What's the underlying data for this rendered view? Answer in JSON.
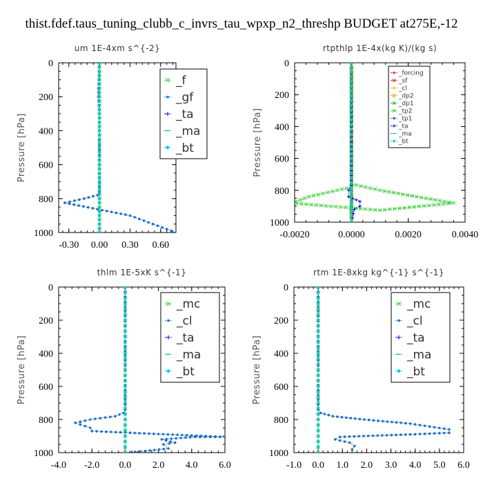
{
  "figure_title": "thist.fdef.taus_tuning_clubb_c_invrs_tau_wpxp_n2_threshp  BUDGET at275E,-12",
  "chart_data": [
    {
      "type": "line",
      "title": "um   1E-4xm  s^{-2}",
      "ylabel": "Pressure [hPa]",
      "xlim": [
        -0.4,
        0.75
      ],
      "ylim": [
        1000,
        0
      ],
      "xticks": [
        -0.3,
        0.0,
        0.3,
        0.6
      ],
      "xtick_labels": [
        "-0.30",
        "0.00",
        "0.30",
        "0.60"
      ],
      "yticks": [
        0,
        200,
        400,
        600,
        800,
        1000
      ],
      "legend_style": "big",
      "series": [
        {
          "name": "_f",
          "color": "#33cc33",
          "marker": "x",
          "x": [
            0,
            0,
            0,
            0,
            0,
            0,
            0,
            0,
            0,
            0,
            0,
            0,
            0
          ],
          "y": [
            0,
            100,
            200,
            300,
            400,
            500,
            600,
            700,
            800,
            850,
            900,
            950,
            1000
          ]
        },
        {
          "name": "_gf",
          "color": "#1f6fbf",
          "marker": "dot",
          "x": [
            -0.003,
            -0.005,
            -0.01,
            -0.01,
            0,
            0,
            0,
            0,
            -0.02,
            -0.15,
            -0.34,
            0.3,
            0.75
          ],
          "y": [
            0,
            100,
            150,
            200,
            300,
            400,
            600,
            760,
            780,
            800,
            825,
            900,
            1000
          ]
        },
        {
          "name": "_ta",
          "color": "#0000dd",
          "marker": "plus",
          "x": [
            0,
            0,
            0,
            0,
            0,
            0,
            0,
            0,
            0,
            0,
            0,
            0
          ],
          "y": [
            0,
            100,
            200,
            300,
            400,
            500,
            600,
            700,
            800,
            850,
            900,
            1000
          ]
        },
        {
          "name": "_ma",
          "color": "#00aacc",
          "marker": "dash",
          "x": [
            0,
            0,
            0,
            0,
            0,
            0,
            0,
            0,
            0,
            0,
            0
          ],
          "y": [
            0,
            100,
            200,
            300,
            400,
            500,
            600,
            700,
            800,
            900,
            1000
          ]
        },
        {
          "name": "_bt",
          "color": "#00cccc",
          "marker": "diamond",
          "x": [
            0,
            0,
            0,
            0,
            0,
            0,
            0,
            0,
            0,
            0,
            0
          ],
          "y": [
            0,
            100,
            200,
            300,
            400,
            500,
            600,
            700,
            800,
            900,
            1000
          ]
        }
      ]
    },
    {
      "type": "line",
      "title": "rtpthlp   1E-4x(kg K)/(kg s)",
      "ylabel": "Pressure [hPa]",
      "xlim": [
        -0.002,
        0.004
      ],
      "ylim": [
        1000,
        0
      ],
      "xticks": [
        -0.002,
        0.0,
        0.002,
        0.004
      ],
      "xtick_labels": [
        "-0.0020",
        "0.0000",
        "0.0020",
        "0.0040"
      ],
      "yticks": [
        0,
        200,
        400,
        600,
        800,
        1000
      ],
      "legend_style": "small",
      "series": [
        {
          "name": "_forcing",
          "color": "#cc0000",
          "marker": "plus",
          "x": [
            0,
            0,
            0,
            0,
            0,
            0,
            0,
            0,
            0,
            0,
            0
          ],
          "y": [
            0,
            100,
            200,
            300,
            400,
            500,
            600,
            700,
            800,
            900,
            1000
          ]
        },
        {
          "name": "_sf",
          "color": "#dd2200",
          "marker": "x",
          "x": [
            0,
            0,
            0,
            0,
            0,
            0,
            0,
            0,
            0,
            0,
            0
          ],
          "y": [
            0,
            100,
            200,
            300,
            400,
            500,
            600,
            700,
            800,
            900,
            1000
          ]
        },
        {
          "name": "_cl",
          "color": "#ddaa00",
          "marker": "plus",
          "x": [
            0,
            0,
            0,
            0,
            0,
            0,
            0,
            0
          ],
          "y": [
            0,
            200,
            400,
            600,
            800,
            900,
            950,
            1000
          ]
        },
        {
          "name": "_dp2",
          "color": "#ccaa00",
          "marker": "square",
          "x": [
            0,
            0,
            0,
            0,
            0,
            0
          ],
          "y": [
            0,
            200,
            400,
            600,
            800,
            1000
          ]
        },
        {
          "name": "_dp1",
          "color": "#33aa33",
          "marker": "x",
          "x": [
            0,
            0,
            0,
            0,
            0,
            0
          ],
          "y": [
            0,
            200,
            400,
            600,
            800,
            1000
          ]
        },
        {
          "name": "_tp2",
          "color": "#33cc33",
          "marker": "x",
          "x": [
            0,
            0,
            0.001,
            0.0036,
            0.001,
            -0.0021,
            -0.0015,
            0,
            0
          ],
          "y": [
            0,
            760,
            800,
            880,
            925,
            880,
            840,
            780,
            1000
          ]
        },
        {
          "name": "_tp1",
          "color": "#1f6fbf",
          "marker": "dot",
          "x": [
            0,
            0,
            0,
            0,
            0
          ],
          "y": [
            0,
            300,
            600,
            900,
            1000
          ]
        },
        {
          "name": "_ta",
          "color": "#0000dd",
          "marker": "plus",
          "x": [
            0,
            0,
            -0.0001,
            -0.0001,
            0.0003,
            0.0003,
            0.0001,
            0
          ],
          "y": [
            0,
            770,
            800,
            840,
            870,
            900,
            920,
            1000
          ]
        },
        {
          "name": "_ma",
          "color": "#00aacc",
          "marker": "dash",
          "x": [
            0,
            0,
            0,
            0,
            0
          ],
          "y": [
            0,
            300,
            600,
            900,
            1000
          ]
        },
        {
          "name": "_bt",
          "color": "#00cccc",
          "marker": "diamond",
          "x": [
            0,
            0,
            0,
            0,
            0
          ],
          "y": [
            0,
            300,
            600,
            900,
            1000
          ]
        }
      ]
    },
    {
      "type": "line",
      "title": "thlm   1E-5xK  s^{-1}",
      "ylabel": "Pressure [hPa]",
      "xlim": [
        -4.0,
        6.0
      ],
      "ylim": [
        1000,
        0
      ],
      "xticks": [
        -4.0,
        -2.0,
        0.0,
        2.0,
        4.0,
        6.0
      ],
      "xtick_labels": [
        "-4.0",
        "-2.0",
        "0.0",
        "2.0",
        "4.0",
        "6.0"
      ],
      "yticks": [
        0,
        200,
        400,
        600,
        800,
        1000
      ],
      "legend_style": "big",
      "series": [
        {
          "name": "_mc",
          "color": "#33cc33",
          "marker": "x",
          "x": [
            0,
            0,
            0,
            0,
            0,
            0,
            0,
            0,
            0,
            0,
            0
          ],
          "y": [
            0,
            100,
            200,
            300,
            400,
            500,
            600,
            700,
            800,
            900,
            1000
          ]
        },
        {
          "name": "_cl",
          "color": "#1f6fbf",
          "marker": "dot",
          "x": [
            0,
            0,
            -0.1,
            -0.6,
            -2.1,
            -3.0,
            -2.1,
            -2.0,
            6.0,
            4.2,
            2.2,
            3.0,
            2.3,
            2.6,
            1.2,
            0
          ],
          "y": [
            0,
            740,
            760,
            780,
            800,
            820,
            850,
            870,
            905,
            905,
            920,
            940,
            950,
            975,
            990,
            1000
          ]
        },
        {
          "name": "_ta",
          "color": "#0000dd",
          "marker": "plus",
          "x": [
            0,
            0,
            0,
            0,
            0,
            0,
            0,
            0,
            0,
            0,
            0
          ],
          "y": [
            0,
            100,
            200,
            300,
            400,
            500,
            600,
            700,
            800,
            900,
            1000
          ]
        },
        {
          "name": "_ma",
          "color": "#00aacc",
          "marker": "dash",
          "x": [
            0,
            0,
            0,
            0,
            0,
            0,
            0,
            0,
            0,
            0,
            0
          ],
          "y": [
            0,
            100,
            200,
            300,
            400,
            500,
            600,
            700,
            800,
            900,
            1000
          ]
        },
        {
          "name": "_bt",
          "color": "#00cccc",
          "marker": "diamond",
          "x": [
            0,
            0,
            0,
            0,
            0,
            0,
            0,
            0,
            0,
            0,
            0
          ],
          "y": [
            0,
            100,
            200,
            300,
            400,
            500,
            600,
            700,
            800,
            900,
            1000
          ]
        }
      ]
    },
    {
      "type": "line",
      "title": "rtm   1E-8xkg  kg^{-1}  s^{-1}",
      "ylabel": "Pressure [hPa]",
      "xlim": [
        -1.0,
        6.0
      ],
      "ylim": [
        1000,
        0
      ],
      "xticks": [
        -1.0,
        0.0,
        1.0,
        2.0,
        3.0,
        4.0,
        5.0,
        6.0
      ],
      "xtick_labels": [
        "-1.0",
        "0.0",
        "1.0",
        "2.0",
        "3.0",
        "4.0",
        "5.0",
        "6.0"
      ],
      "yticks": [
        0,
        200,
        400,
        600,
        800,
        1000
      ],
      "legend_style": "big",
      "series": [
        {
          "name": "_mc",
          "color": "#33cc33",
          "marker": "x",
          "x": [
            0,
            0,
            0,
            0,
            0,
            0,
            0,
            0,
            0,
            0,
            0
          ],
          "y": [
            0,
            100,
            200,
            300,
            400,
            500,
            600,
            700,
            800,
            900,
            1000
          ]
        },
        {
          "name": "_cl",
          "color": "#1f6fbf",
          "marker": "dot",
          "x": [
            0,
            0,
            0.1,
            0.6,
            1.9,
            3.8,
            5.4,
            5.4,
            3.8,
            0.9,
            0.7,
            1.3,
            1.5,
            1.4,
            1.4
          ],
          "y": [
            0,
            740,
            760,
            780,
            800,
            825,
            860,
            880,
            890,
            905,
            920,
            940,
            960,
            980,
            1000
          ]
        },
        {
          "name": "_ta",
          "color": "#0000dd",
          "marker": "plus",
          "x": [
            0,
            0,
            0,
            0,
            0,
            0,
            0,
            0,
            0,
            0,
            0
          ],
          "y": [
            0,
            100,
            200,
            300,
            400,
            500,
            600,
            700,
            800,
            900,
            1000
          ]
        },
        {
          "name": "_ma",
          "color": "#00aacc",
          "marker": "dash",
          "x": [
            0,
            0,
            0,
            0,
            0,
            0,
            0,
            0,
            0,
            0,
            0
          ],
          "y": [
            0,
            100,
            200,
            300,
            400,
            500,
            600,
            700,
            800,
            900,
            1000
          ]
        },
        {
          "name": "_bt",
          "color": "#00cccc",
          "marker": "diamond",
          "x": [
            0,
            0,
            0,
            0,
            0,
            0,
            0,
            0,
            0,
            0,
            0
          ],
          "y": [
            0,
            100,
            200,
            300,
            400,
            500,
            600,
            700,
            800,
            900,
            1000
          ]
        }
      ]
    }
  ]
}
